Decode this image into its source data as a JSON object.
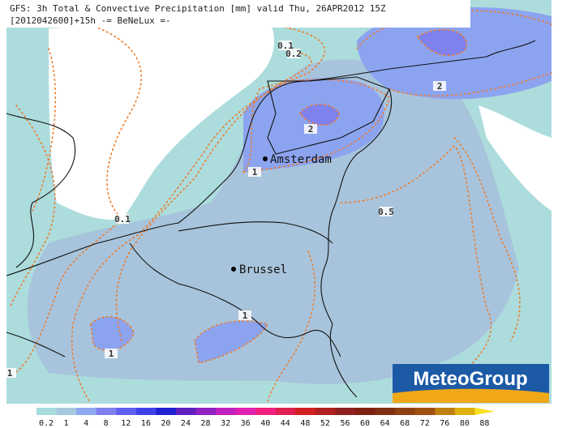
{
  "header": {
    "title": "GFS: 3h Total & Convective Precipitation [mm] valid Thu, 26APR2012 15Z",
    "subtitle": "[2012042600]+15h -= BeNeLux =-"
  },
  "cities": [
    "Amsterdam",
    "Brussel"
  ],
  "contour_labels": [
    "0.1",
    "0.2",
    "2",
    "2",
    "1",
    "0.1",
    "0.5",
    "1",
    "1",
    "1"
  ],
  "logo": "MeteoGroup",
  "legend": {
    "labels": [
      "0.2",
      "1",
      "4",
      "8",
      "12",
      "16",
      "20",
      "24",
      "28",
      "32",
      "36",
      "40",
      "44",
      "48",
      "52",
      "56",
      "60",
      "64",
      "68",
      "72",
      "76",
      "80",
      "88"
    ],
    "colors": [
      "#a8dcdc",
      "#a8c8e0",
      "#90a8f0",
      "#8080f0",
      "#6060f0",
      "#4040e8",
      "#2020d0",
      "#6020c0",
      "#9020c0",
      "#c020c0",
      "#e020b0",
      "#f02080",
      "#e02050",
      "#d02020",
      "#b02020",
      "#902020",
      "#802010",
      "#803010",
      "#904010",
      "#a05010",
      "#c08010",
      "#e0b010",
      "#f8e020"
    ]
  }
}
